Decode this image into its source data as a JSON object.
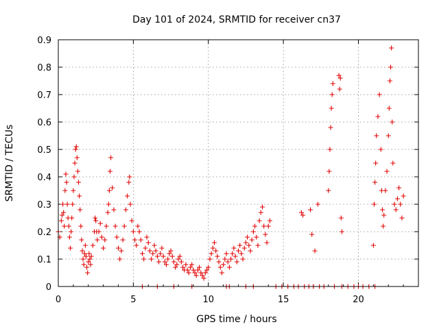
{
  "chart_data": {
    "type": "scatter",
    "title": "Day 101 of 2024, SRMTID for receiver cn37",
    "xlabel": "GPS time / hours",
    "ylabel": "SRMTID / TECUs",
    "xlim": [
      0,
      24
    ],
    "ylim": [
      0,
      0.9
    ],
    "xticks": [
      0,
      5,
      10,
      15,
      20
    ],
    "xtick_labels": [
      "0",
      "5",
      "10",
      "15",
      "20"
    ],
    "yticks": [
      0,
      0.1,
      0.2,
      0.3,
      0.4,
      0.5,
      0.6,
      0.7,
      0.8,
      0.9
    ],
    "ytick_labels": [
      "0",
      "0.1",
      "0.2",
      "0.3",
      "0.4",
      "0.5",
      "0.6",
      "0.7",
      "0.8",
      "0.9"
    ],
    "grid": true,
    "marker": "plus",
    "marker_color": "#e00000",
    "series": [
      {
        "name": "SRMTID",
        "x": [
          0.0,
          0.1,
          0.2,
          0.25,
          0.3,
          0.35,
          0.4,
          0.45,
          0.5,
          0.55,
          0.6,
          0.65,
          0.7,
          0.75,
          0.8,
          0.85,
          0.9,
          0.95,
          1.0,
          1.05,
          1.1,
          1.15,
          1.2,
          1.25,
          1.3,
          1.35,
          1.4,
          1.45,
          1.5,
          1.55,
          1.6,
          1.65,
          1.7,
          1.75,
          1.8,
          1.85,
          1.9,
          1.95,
          2.0,
          2.05,
          2.1,
          2.15,
          2.2,
          2.3,
          2.4,
          2.45,
          2.5,
          2.55,
          2.6,
          2.7,
          2.8,
          2.9,
          3.0,
          3.1,
          3.2,
          3.3,
          3.35,
          3.4,
          3.45,
          3.5,
          3.6,
          3.7,
          3.8,
          3.9,
          4.0,
          4.1,
          4.2,
          4.3,
          4.4,
          4.5,
          4.6,
          4.7,
          4.75,
          4.8,
          4.9,
          5.0,
          5.1,
          5.2,
          5.3,
          5.4,
          5.5,
          5.6,
          5.7,
          5.8,
          5.9,
          6.0,
          6.1,
          6.2,
          6.3,
          6.4,
          6.5,
          6.6,
          6.7,
          6.8,
          6.9,
          7.0,
          7.1,
          7.2,
          7.3,
          7.4,
          7.5,
          7.6,
          7.7,
          7.8,
          7.9,
          8.0,
          8.1,
          8.2,
          8.3,
          8.4,
          8.5,
          8.6,
          8.7,
          8.8,
          8.9,
          9.0,
          9.1,
          9.2,
          9.3,
          9.4,
          9.5,
          9.6,
          9.7,
          9.8,
          9.9,
          10.0,
          10.1,
          10.2,
          10.3,
          10.4,
          10.5,
          10.6,
          10.7,
          10.8,
          10.9,
          11.0,
          11.1,
          11.2,
          11.3,
          11.4,
          11.5,
          11.6,
          11.7,
          11.8,
          11.9,
          12.0,
          12.1,
          12.2,
          12.3,
          12.4,
          12.5,
          12.6,
          12.7,
          12.8,
          12.9,
          13.0,
          13.1,
          13.2,
          13.3,
          13.4,
          13.5,
          13.6,
          13.7,
          13.8,
          13.9,
          14.0,
          14.1,
          16.2,
          16.3,
          16.8,
          16.9,
          17.1,
          17.3,
          18.0,
          18.05,
          18.1,
          18.15,
          18.2,
          18.25,
          18.3,
          18.7,
          18.75,
          18.8,
          18.85,
          18.9,
          21.0,
          21.05,
          21.1,
          21.15,
          21.2,
          21.3,
          21.4,
          21.5,
          21.55,
          21.6,
          21.65,
          21.7,
          21.8,
          21.9,
          22.0,
          22.05,
          22.1,
          22.15,
          22.2,
          22.25,
          22.3,
          22.4,
          22.5,
          22.6,
          22.7,
          22.8,
          22.9,
          23.0,
          5.6,
          6.6,
          7.7,
          8.9,
          11.2,
          11.4,
          12.5,
          13.0,
          14.5,
          14.9,
          15.3,
          15.7,
          16.0,
          16.4,
          16.7,
          17.0,
          17.4,
          17.7,
          18.4,
          18.9,
          19.3,
          19.7,
          20.0,
          20.3,
          20.7,
          21.1
        ],
        "y": [
          0.2,
          0.18,
          0.24,
          0.26,
          0.3,
          0.27,
          0.22,
          0.35,
          0.41,
          0.38,
          0.3,
          0.25,
          0.22,
          0.18,
          0.14,
          0.2,
          0.25,
          0.3,
          0.35,
          0.4,
          0.45,
          0.5,
          0.51,
          0.47,
          0.42,
          0.38,
          0.33,
          0.28,
          0.22,
          0.17,
          0.13,
          0.1,
          0.08,
          0.12,
          0.15,
          0.11,
          0.07,
          0.05,
          0.09,
          0.12,
          0.1,
          0.08,
          0.11,
          0.15,
          0.2,
          0.25,
          0.24,
          0.2,
          0.17,
          0.2,
          0.23,
          0.18,
          0.14,
          0.17,
          0.22,
          0.27,
          0.3,
          0.35,
          0.42,
          0.47,
          0.36,
          0.28,
          0.22,
          0.18,
          0.14,
          0.1,
          0.13,
          0.17,
          0.22,
          0.28,
          0.33,
          0.38,
          0.4,
          0.3,
          0.24,
          0.2,
          0.17,
          0.15,
          0.22,
          0.2,
          0.17,
          0.12,
          0.1,
          0.14,
          0.18,
          0.16,
          0.13,
          0.1,
          0.12,
          0.15,
          0.13,
          0.11,
          0.09,
          0.12,
          0.14,
          0.11,
          0.09,
          0.08,
          0.1,
          0.12,
          0.13,
          0.11,
          0.09,
          0.07,
          0.08,
          0.1,
          0.11,
          0.09,
          0.07,
          0.06,
          0.08,
          0.06,
          0.05,
          0.07,
          0.08,
          0.06,
          0.05,
          0.04,
          0.06,
          0.07,
          0.05,
          0.04,
          0.03,
          0.05,
          0.06,
          0.07,
          0.1,
          0.12,
          0.14,
          0.16,
          0.13,
          0.11,
          0.09,
          0.07,
          0.05,
          0.08,
          0.1,
          0.12,
          0.09,
          0.07,
          0.1,
          0.12,
          0.14,
          0.11,
          0.09,
          0.13,
          0.15,
          0.12,
          0.1,
          0.14,
          0.16,
          0.18,
          0.15,
          0.13,
          0.17,
          0.2,
          0.22,
          0.18,
          0.15,
          0.24,
          0.27,
          0.29,
          0.22,
          0.19,
          0.16,
          0.22,
          0.24,
          0.27,
          0.26,
          0.28,
          0.19,
          0.13,
          0.3,
          0.35,
          0.42,
          0.5,
          0.58,
          0.65,
          0.7,
          0.74,
          0.77,
          0.72,
          0.76,
          0.25,
          0.2,
          0.15,
          0.3,
          0.38,
          0.45,
          0.55,
          0.62,
          0.7,
          0.5,
          0.35,
          0.28,
          0.22,
          0.26,
          0.35,
          0.42,
          0.55,
          0.65,
          0.75,
          0.8,
          0.87,
          0.6,
          0.45,
          0.3,
          0.28,
          0.32,
          0.36,
          0.3,
          0.25,
          0.33,
          0,
          0,
          0,
          0,
          0,
          0,
          0,
          0,
          0,
          0,
          0,
          0,
          0,
          0,
          0,
          0,
          0,
          0,
          0,
          0,
          0,
          0,
          0,
          0,
          0,
          0
        ]
      }
    ]
  }
}
